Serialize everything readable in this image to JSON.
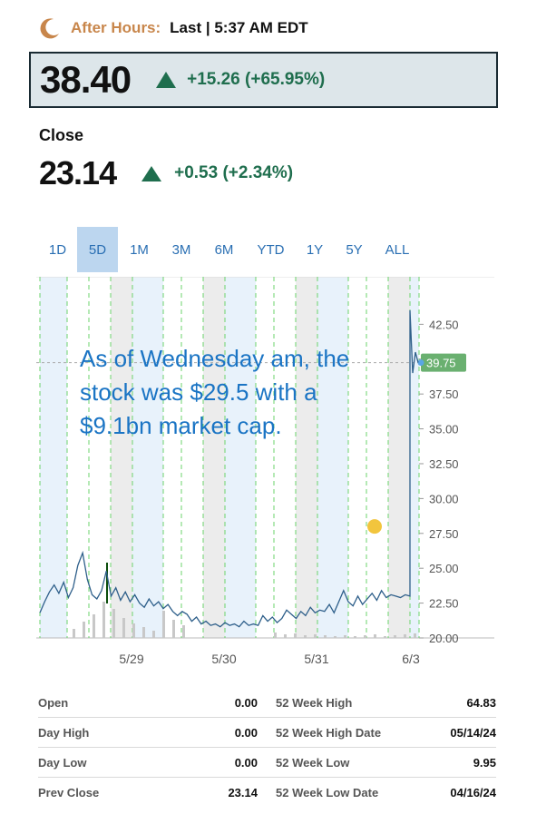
{
  "after_hours": {
    "label": "After Hours:",
    "status": "Last | 5:37 AM EDT",
    "price": "38.40",
    "change": "+15.26 (+65.95%)"
  },
  "close": {
    "label": "Close",
    "price": "23.14",
    "change": "+0.53 (+2.34%)"
  },
  "ranges": {
    "active": "5D",
    "items": [
      "1D",
      "5D",
      "1M",
      "3M",
      "6M",
      "YTD",
      "1Y",
      "5Y",
      "ALL"
    ]
  },
  "annotation": "As of Wednesday am, the stock was $29.5 with a $9.1bn market cap.",
  "colors": {
    "accent_up": "#1f6e4e",
    "after_hours_label": "#c8864b",
    "line": "#2e5f8a",
    "current_badge": "#6ab070",
    "annotation_text": "#1a74c4",
    "marker_dot": "#f2c53d"
  },
  "chart_data": {
    "type": "line",
    "x_labels": [
      "5/29",
      "5/30",
      "5/31",
      "6/3"
    ],
    "ylim": [
      20.0,
      43.5
    ],
    "y_ticks": [
      "42.50",
      "40.00",
      "37.50",
      "35.00",
      "32.50",
      "30.00",
      "27.50",
      "25.00",
      "22.50",
      "20.00"
    ],
    "current_value_label": "39.75",
    "current_value": 39.75,
    "series": [
      {
        "values": [
          21.8,
          22.6,
          23.3,
          23.8,
          23.2,
          24.0,
          22.9,
          23.6,
          25.2,
          26.1,
          24.2,
          23.1,
          22.8,
          23.4,
          24.8,
          23.0,
          23.6,
          22.7,
          23.3,
          22.6,
          23.1,
          22.5,
          22.2,
          22.8,
          22.3,
          22.6,
          22.1,
          22.4,
          21.9,
          21.6,
          21.9,
          21.7,
          21.2,
          21.5,
          21.0,
          21.2,
          20.9,
          21.0,
          20.8,
          21.1,
          20.9,
          21.0,
          20.8,
          21.2,
          20.9,
          21.0,
          20.9,
          21.6,
          21.2,
          21.5,
          21.1,
          21.4,
          22.0,
          21.7,
          21.4,
          21.9,
          21.6,
          22.2,
          21.8,
          22.0,
          21.9,
          22.4,
          21.8,
          22.6,
          23.4,
          22.6,
          22.3,
          23.0,
          22.4,
          22.8,
          23.2,
          22.7,
          23.4,
          22.9,
          23.1,
          23.0,
          22.9,
          23.1,
          23.0,
          43.5,
          39.0,
          40.5,
          39.75
        ],
        "volume_note": "volume bars shown along bottom"
      }
    ],
    "highlight_marker": {
      "value": 28.0
    }
  },
  "stats": {
    "rows": [
      {
        "l": "Open",
        "lv": "0.00",
        "r": "52 Week High",
        "rv": "64.83"
      },
      {
        "l": "Day High",
        "lv": "0.00",
        "r": "52 Week High Date",
        "rv": "05/14/24"
      },
      {
        "l": "Day Low",
        "lv": "0.00",
        "r": "52 Week Low",
        "rv": "9.95"
      },
      {
        "l": "Prev Close",
        "lv": "23.14",
        "r": "52 Week Low Date",
        "rv": "04/16/24"
      }
    ]
  }
}
